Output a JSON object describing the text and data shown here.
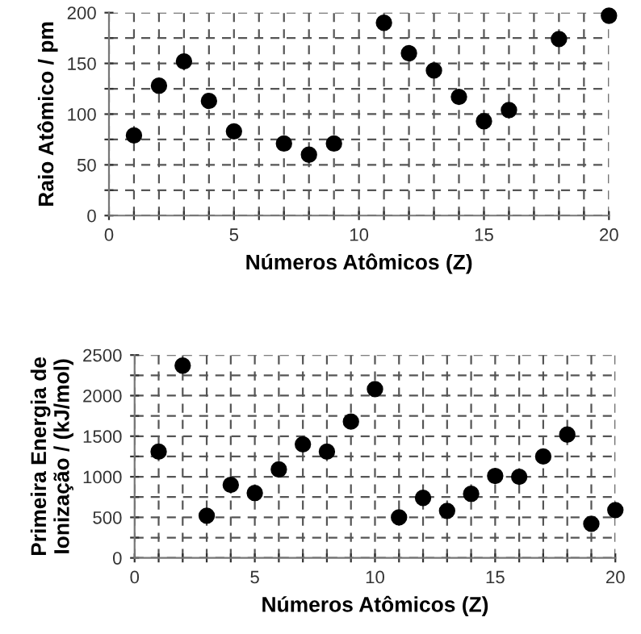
{
  "chart_data": [
    {
      "type": "scatter",
      "xlabel": "Números Atômicos (Z)",
      "ylabel": "Raio Atômico / pm",
      "x": [
        1,
        2,
        3,
        4,
        5,
        7,
        8,
        9,
        11,
        12,
        13,
        14,
        15,
        16,
        18,
        20
      ],
      "series": [
        {
          "color": "#000000",
          "values": [
            79,
            128,
            152,
            113,
            83,
            71,
            60,
            71,
            190,
            160,
            143,
            117,
            93,
            104,
            174,
            197
          ]
        }
      ],
      "xlim": [
        0,
        20
      ],
      "ylim": [
        0,
        200
      ],
      "xticks": [
        0,
        {
          "value": 1,
          "label": null
        },
        {
          "value": 2,
          "label": null
        },
        {
          "value": 3,
          "label": null
        },
        {
          "value": 4,
          "label": null
        },
        5,
        {
          "value": 6,
          "label": null
        },
        {
          "value": 7,
          "label": null
        },
        {
          "value": 8,
          "label": null
        },
        {
          "value": 9,
          "label": null
        },
        10,
        {
          "value": 11,
          "label": null
        },
        {
          "value": 12,
          "label": null
        },
        {
          "value": 13,
          "label": null
        },
        {
          "value": 14,
          "label": null
        },
        15,
        {
          "value": 16,
          "label": null
        },
        {
          "value": 17,
          "label": null
        },
        {
          "value": 18,
          "label": null
        },
        {
          "value": 19,
          "label": null
        },
        20
      ],
      "yticks": [
        0,
        {
          "value": 25,
          "label": null
        },
        50,
        {
          "value": 75,
          "label": null
        },
        100,
        {
          "value": 125,
          "label": null
        },
        150,
        {
          "value": 175,
          "label": null
        },
        200
      ],
      "grid": true,
      "marker": "circle",
      "legend": false
    },
    {
      "type": "scatter",
      "xlabel": "Números Atômicos (Z)",
      "ylabel": "Primeira Energia de\nIonização / (kJ/mol)",
      "x": [
        1,
        2,
        3,
        4,
        5,
        6,
        7,
        8,
        9,
        10,
        11,
        12,
        13,
        14,
        15,
        16,
        17,
        18,
        19,
        20
      ],
      "series": [
        {
          "color": "#000000",
          "values": [
            1310,
            2370,
            520,
            900,
            800,
            1090,
            1400,
            1310,
            1680,
            2080,
            500,
            740,
            580,
            790,
            1010,
            1000,
            1250,
            1520,
            420,
            590
          ]
        }
      ],
      "xlim": [
        0,
        20
      ],
      "ylim": [
        0,
        2500
      ],
      "xticks": [
        0,
        {
          "value": 1,
          "label": null
        },
        {
          "value": 2,
          "label": null
        },
        {
          "value": 3,
          "label": null
        },
        {
          "value": 4,
          "label": null
        },
        5,
        {
          "value": 6,
          "label": null
        },
        {
          "value": 7,
          "label": null
        },
        {
          "value": 8,
          "label": null
        },
        {
          "value": 9,
          "label": null
        },
        10,
        {
          "value": 11,
          "label": null
        },
        {
          "value": 12,
          "label": null
        },
        {
          "value": 13,
          "label": null
        },
        {
          "value": 14,
          "label": null
        },
        15,
        {
          "value": 16,
          "label": null
        },
        {
          "value": 17,
          "label": null
        },
        {
          "value": 18,
          "label": null
        },
        {
          "value": 19,
          "label": null
        },
        20
      ],
      "yticks": [
        0,
        {
          "value": 250,
          "label": null
        },
        500,
        {
          "value": 750,
          "label": null
        },
        1000,
        {
          "value": 1250,
          "label": null
        },
        1500,
        {
          "value": 1750,
          "label": null
        },
        2000,
        {
          "value": 2250,
          "label": null
        },
        2500
      ],
      "grid": true,
      "marker": "circle",
      "legend": false
    }
  ]
}
